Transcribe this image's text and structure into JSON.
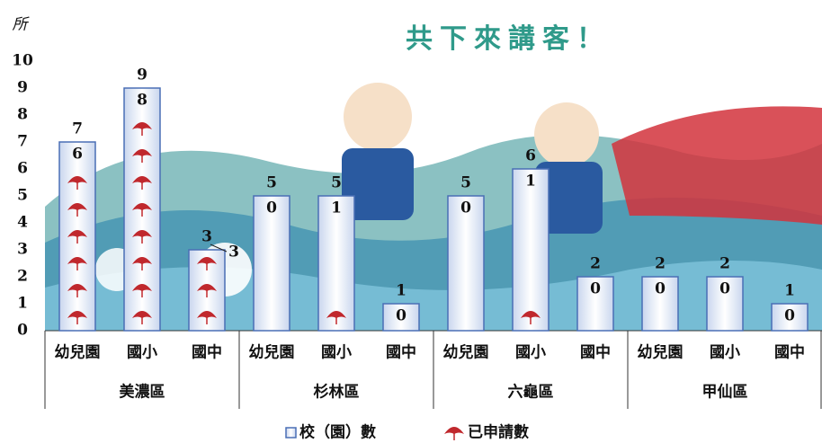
{
  "chart_data": {
    "type": "bar",
    "y_label": "所",
    "banner": "共下來講客！",
    "categories": [
      "幼兒園",
      "國小",
      "國中",
      "幼兒園",
      "國小",
      "國中",
      "幼兒園",
      "國小",
      "國中",
      "幼兒園",
      "國小",
      "國中"
    ],
    "groups": [
      "美濃區",
      "杉林區",
      "六龜區",
      "甲仙區"
    ],
    "series": [
      {
        "name": "校（園）數",
        "color": "#4a6fb5",
        "values": [
          7,
          9,
          3,
          5,
          5,
          1,
          5,
          6,
          2,
          2,
          2,
          1
        ]
      },
      {
        "name": "已申請數",
        "color": "#c0282d",
        "values": [
          6,
          8,
          3,
          0,
          1,
          0,
          0,
          1,
          0,
          0,
          0,
          0
        ]
      }
    ],
    "ylim": [
      0,
      10
    ],
    "yticks": [
      0,
      1,
      2,
      3,
      4,
      5,
      6,
      7,
      8,
      9,
      10
    ]
  }
}
